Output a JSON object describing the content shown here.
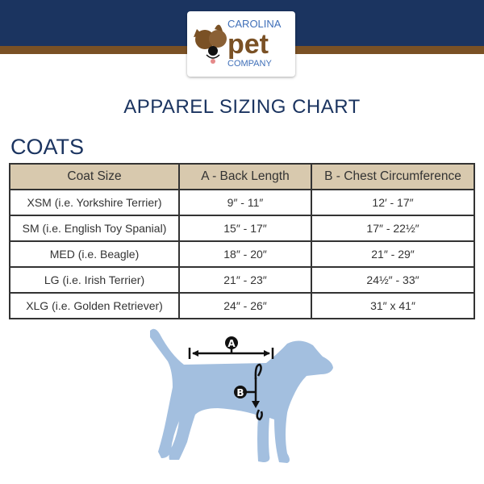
{
  "logo": {
    "line1": "CAROLINA",
    "line2": "pet",
    "line3": "COMPANY"
  },
  "title": "APPAREL SIZING CHART",
  "section": "COATS",
  "table": {
    "headers": [
      "Coat Size",
      "A - Back Length",
      "B - Chest Circumference"
    ],
    "rows": [
      [
        "XSM (i.e. Yorkshire Terrier)",
        "9″ - 11″",
        "12′ - 17″"
      ],
      [
        "SM (i.e. English Toy Spanial)",
        "15″ - 17″",
        "17″ - 22½″"
      ],
      [
        "MED (i.e. Beagle)",
        "18″ - 20″",
        "21″ - 29″"
      ],
      [
        "LG (i.e. Irish Terrier)",
        "21″ - 23″",
        "24½″ - 33″"
      ],
      [
        "XLG (i.e. Golden Retriever)",
        "24″ - 26″",
        "31″ x 41″"
      ]
    ]
  },
  "diagram": {
    "label_a": "A",
    "label_b": "B",
    "dog_color": "#a3bfdf"
  },
  "colors": {
    "navy": "#1b3460",
    "brown": "#7a5125",
    "header_bg": "#d8c9ae"
  }
}
